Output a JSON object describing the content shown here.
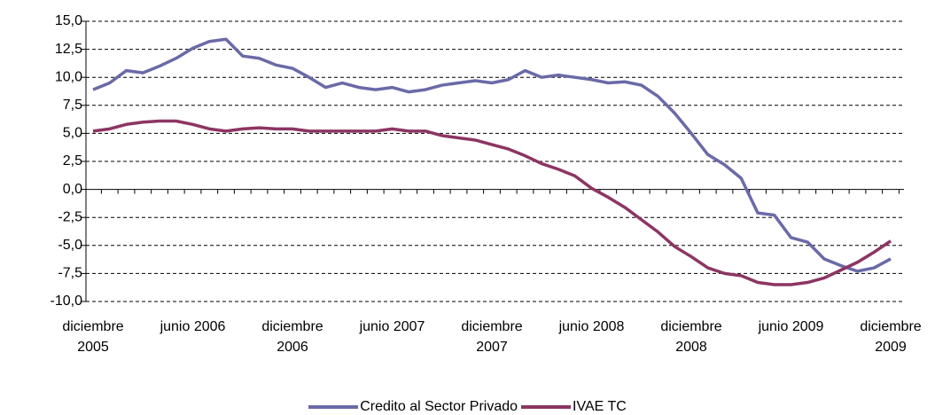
{
  "chart_data": {
    "type": "line",
    "categories": [
      "diciembre 2005",
      null,
      null,
      null,
      null,
      null,
      "junio 2006",
      null,
      null,
      null,
      null,
      null,
      "diciembre 2006",
      null,
      null,
      null,
      null,
      null,
      "junio 2007",
      null,
      null,
      null,
      null,
      null,
      "diciembre 2007",
      null,
      null,
      null,
      null,
      null,
      "junio 2008",
      null,
      null,
      null,
      null,
      null,
      "diciembre 2008",
      null,
      null,
      null,
      null,
      null,
      "junio 2009",
      null,
      null,
      null,
      null,
      null,
      "diciembre 2009"
    ],
    "series": [
      {
        "name": "Credito al Sector Privado",
        "color": "#6a6aa8",
        "values": [
          8.9,
          9.5,
          10.6,
          10.4,
          11.0,
          11.7,
          12.6,
          13.2,
          13.4,
          11.9,
          11.7,
          11.1,
          10.8,
          10.0,
          9.1,
          9.5,
          9.1,
          8.9,
          9.1,
          8.7,
          8.9,
          9.3,
          9.5,
          9.7,
          9.5,
          9.8,
          10.6,
          10.0,
          10.2,
          10.0,
          9.8,
          9.5,
          9.6,
          9.3,
          8.3,
          6.8,
          5.0,
          3.1,
          2.2,
          1.0,
          -2.1,
          -2.3,
          -4.3,
          -4.7,
          -6.2,
          -6.8,
          -7.3,
          -7.0,
          -6.2
        ]
      },
      {
        "name": "IVAE TC",
        "color": "#8c3563",
        "values": [
          5.2,
          5.4,
          5.8,
          6.0,
          6.1,
          6.1,
          5.8,
          5.4,
          5.2,
          5.4,
          5.5,
          5.4,
          5.4,
          5.2,
          5.2,
          5.2,
          5.2,
          5.2,
          5.4,
          5.2,
          5.2,
          4.8,
          4.6,
          4.4,
          4.0,
          3.6,
          3.0,
          2.3,
          1.8,
          1.2,
          0.1,
          -0.7,
          -1.6,
          -2.7,
          -3.8,
          -5.1,
          -6.0,
          -7.0,
          -7.5,
          -7.7,
          -8.3,
          -8.5,
          -8.5,
          -8.3,
          -7.9,
          -7.2,
          -6.5,
          -5.6,
          -4.6
        ]
      }
    ],
    "ylim": [
      -10,
      15
    ],
    "yticks": [
      {
        "value": -10,
        "label": "-10,0"
      },
      {
        "value": -7.5,
        "label": "-7,5"
      },
      {
        "value": -5,
        "label": "-5,0"
      },
      {
        "value": -2.5,
        "label": "-2,5"
      },
      {
        "value": 0,
        "label": "0,0"
      },
      {
        "value": 2.5,
        "label": "2,5"
      },
      {
        "value": 5,
        "label": "5,0"
      },
      {
        "value": 7.5,
        "label": "7,5"
      },
      {
        "value": 10,
        "label": "10,0"
      },
      {
        "value": 12.5,
        "label": "12,5"
      },
      {
        "value": 15,
        "label": "15,0"
      }
    ],
    "grid": true,
    "legend": "bottom"
  }
}
